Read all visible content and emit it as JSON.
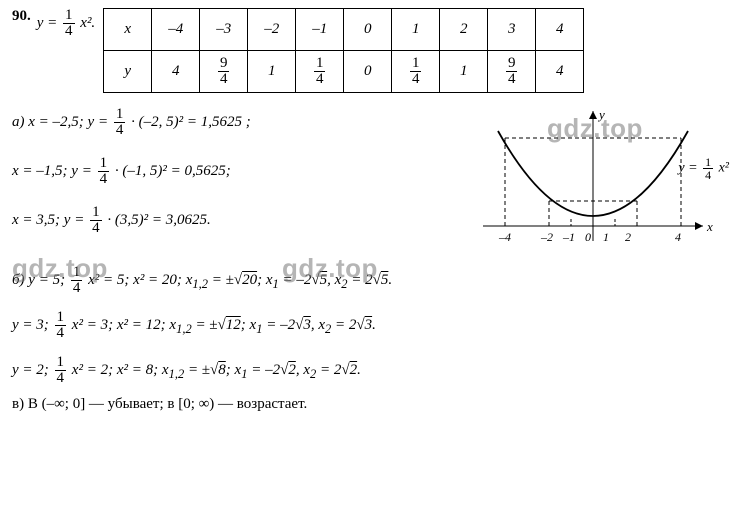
{
  "problem_number": "90.",
  "equation_label": "y = ",
  "equation_frac_num": "1",
  "equation_frac_den": "4",
  "equation_tail": " x².",
  "table": {
    "header_x": "x",
    "header_y": "y",
    "x_values": [
      "–4",
      "–3",
      "–2",
      "–1",
      "0",
      "1",
      "2",
      "3",
      "4"
    ],
    "y_values": [
      "4",
      "",
      "1",
      "",
      "0",
      "",
      "1",
      "",
      "4"
    ],
    "y_fracs": {
      "1": {
        "num": "9",
        "den": "4"
      },
      "3": {
        "num": "1",
        "den": "4"
      },
      "5": {
        "num": "1",
        "den": "4"
      },
      "7": {
        "num": "9",
        "den": "4"
      }
    }
  },
  "part_a": {
    "label": "а)",
    "lines": [
      "x = –2,5;  y = |FRAC14| · (–2, 5)² = 1,5625 ;",
      "x = –1,5;  y = |FRAC14| · (–1, 5)² = 0,5625;",
      "x = 3,5;  y = |FRAC14| · (3,5)² = 3,0625."
    ]
  },
  "part_b": {
    "label": "б)",
    "lines": [
      "y = 5;  |FRAC14| x² = 5;  x² = 20;  x₁,₂ = ±√20;  x₁ = –2√5,  x₂ = 2√5.",
      "y = 3;  |FRAC14| x² = 3;  x² = 12;  x₁,₂ = ±√12;  x₁ = –2√3,  x₂ = 2√3.",
      "y = 2;  |FRAC14| x² = 2;  x² = 8;  x₁,₂ = ±√8;  x₁ = –2√2, x₂ = 2√2."
    ]
  },
  "part_c": {
    "label": "в)",
    "text": "В (–∞; 0] — убывает; в [0; ∞) — возрастает."
  },
  "watermarks": {
    "wm1": "gdz.top",
    "wm2": "gdz.top",
    "wm3": "gdz.top"
  },
  "chart": {
    "type": "parabola",
    "xlim": [
      -5,
      5.5
    ],
    "ylim": [
      -0.8,
      4.8
    ],
    "xticks": [
      "–4",
      "–2",
      "–1",
      "0",
      "1",
      "2",
      "4"
    ],
    "axis_labels": {
      "x": "x",
      "y": "y"
    },
    "curve_label_prefix": "y = ",
    "curve_label_num": "1",
    "curve_label_den": "4",
    "curve_label_tail": " x²",
    "curve_color": "#000000",
    "dash_color": "#000000",
    "background": "#ffffff",
    "axis_color": "#000000",
    "dash_points_x": [
      -4,
      -2,
      -1,
      1,
      2,
      4
    ]
  }
}
